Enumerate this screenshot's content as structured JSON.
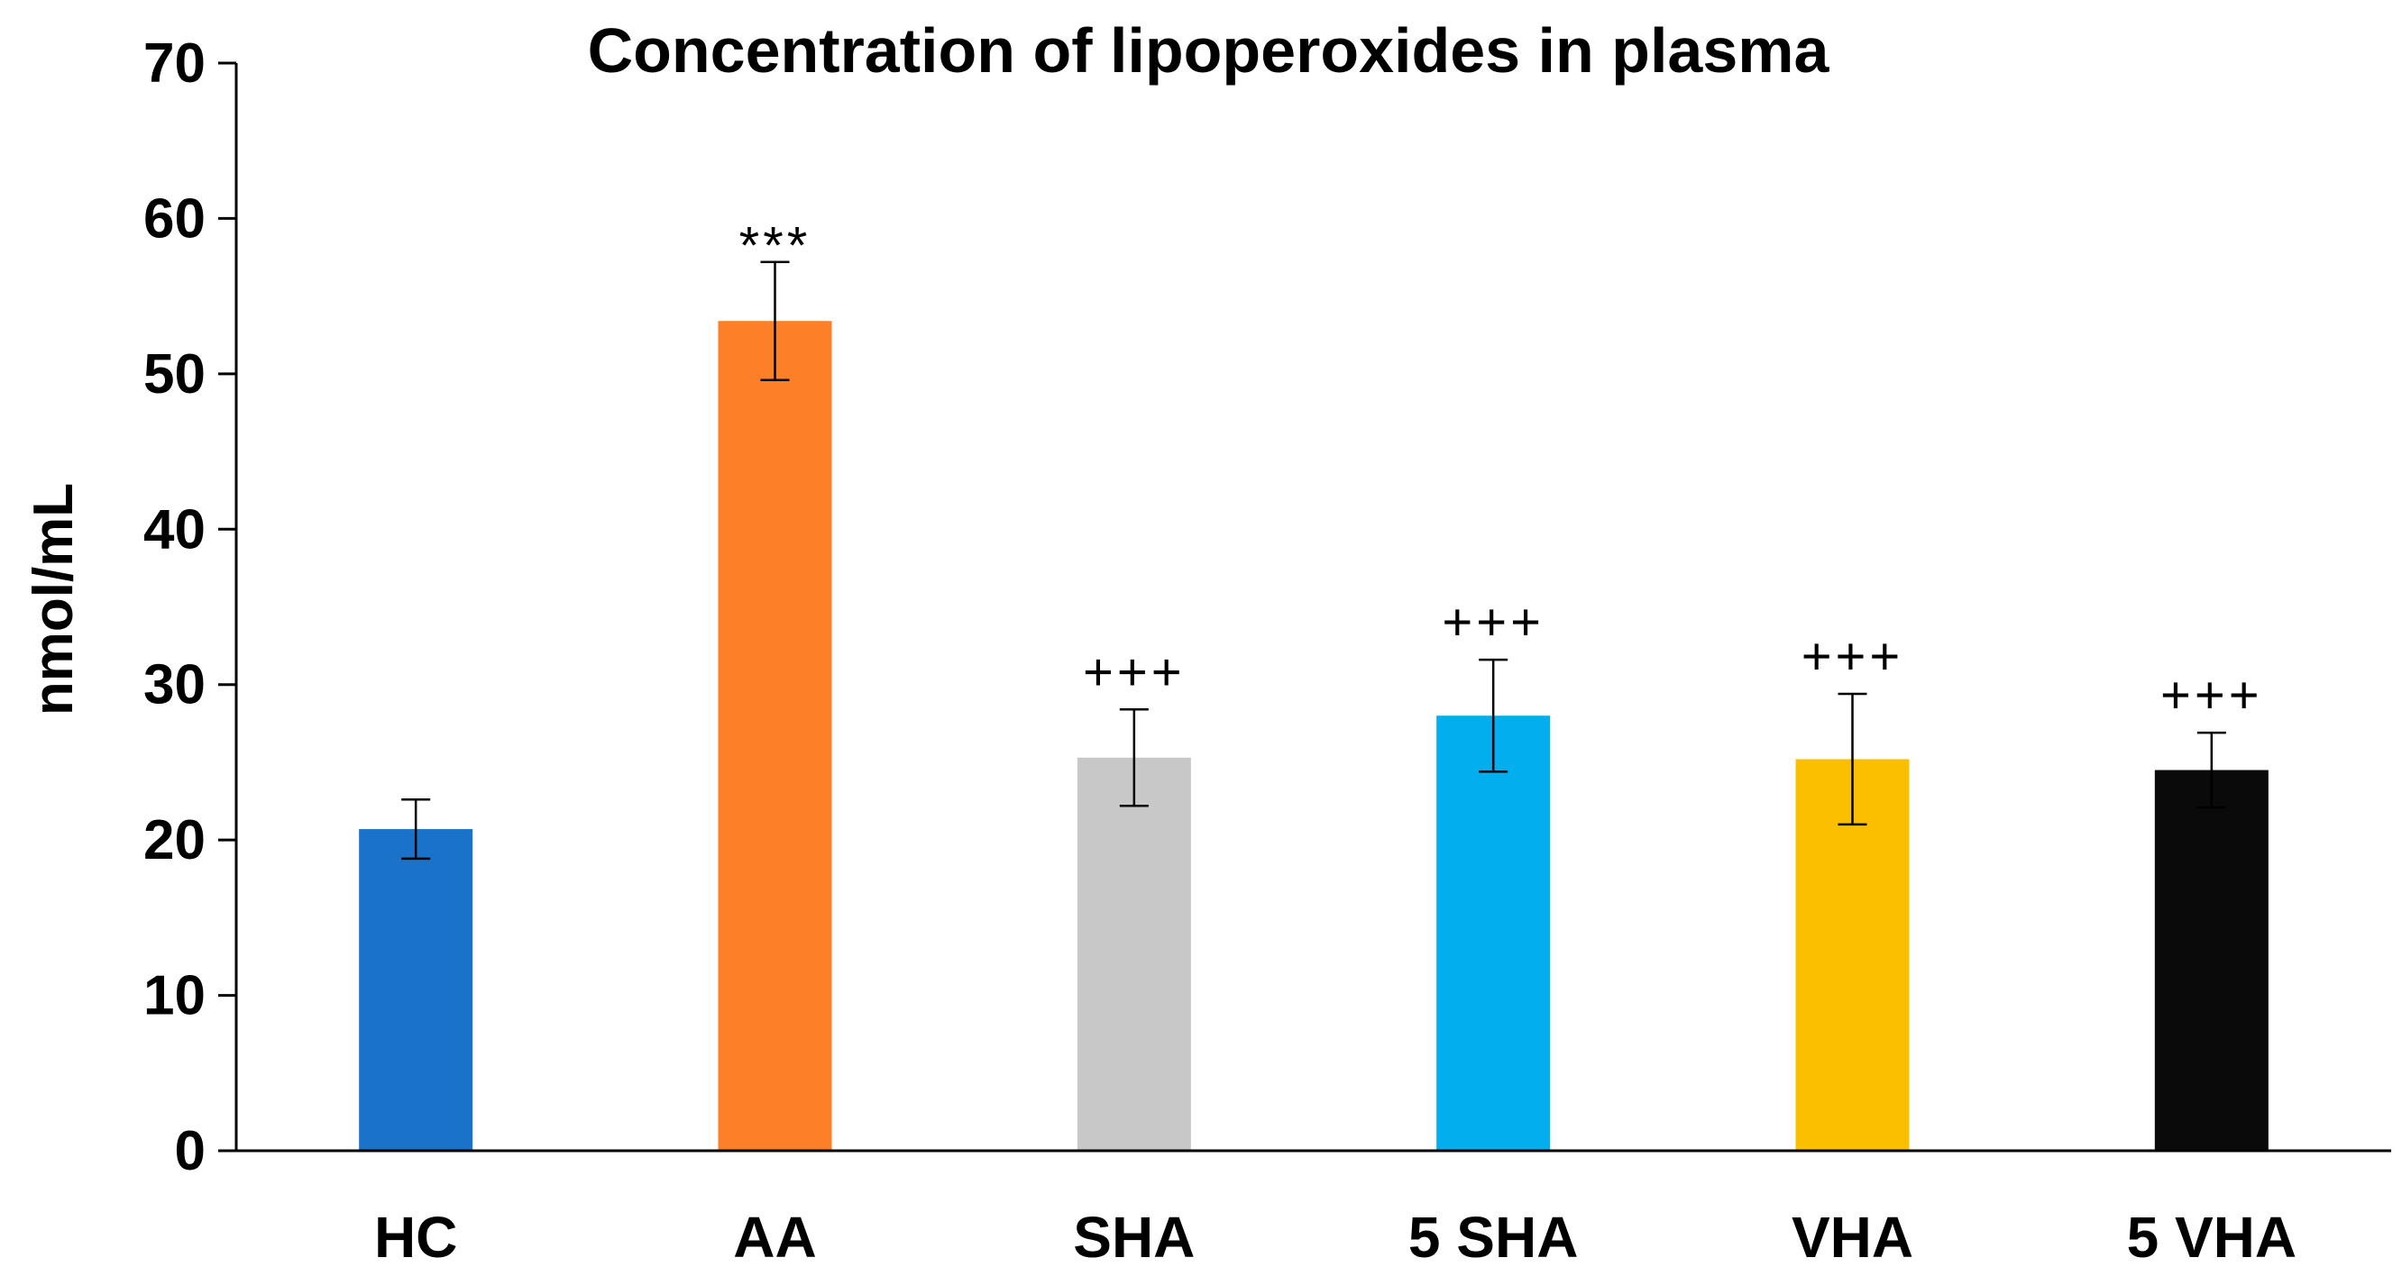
{
  "chart_data": {
    "type": "bar",
    "title": "Concentration of lipoperoxides in plasma",
    "xlabel": "",
    "ylabel": "nmol/mL",
    "ylim": [
      0,
      70
    ],
    "yticks": [
      "0",
      "10",
      "20",
      "30",
      "40",
      "50",
      "60",
      "70"
    ],
    "ytick_values": [
      0,
      10,
      20,
      30,
      40,
      50,
      60,
      70
    ],
    "grid": false,
    "categories": [
      "HC",
      "AA",
      "SHA",
      "5 SHA",
      "VHA",
      "5 VHA"
    ],
    "values": [
      20.7,
      53.4,
      25.3,
      28.0,
      25.2,
      24.5
    ],
    "errors": [
      1.9,
      3.8,
      3.1,
      3.6,
      4.2,
      2.4
    ],
    "significance": [
      "",
      "***",
      "+++",
      "+++",
      "+++",
      "+++"
    ],
    "colors": [
      "#1b72c9",
      "#fd7f28",
      "#c8c8c8",
      "#03aeef",
      "#fcbf00",
      "#0a0a0a"
    ]
  }
}
